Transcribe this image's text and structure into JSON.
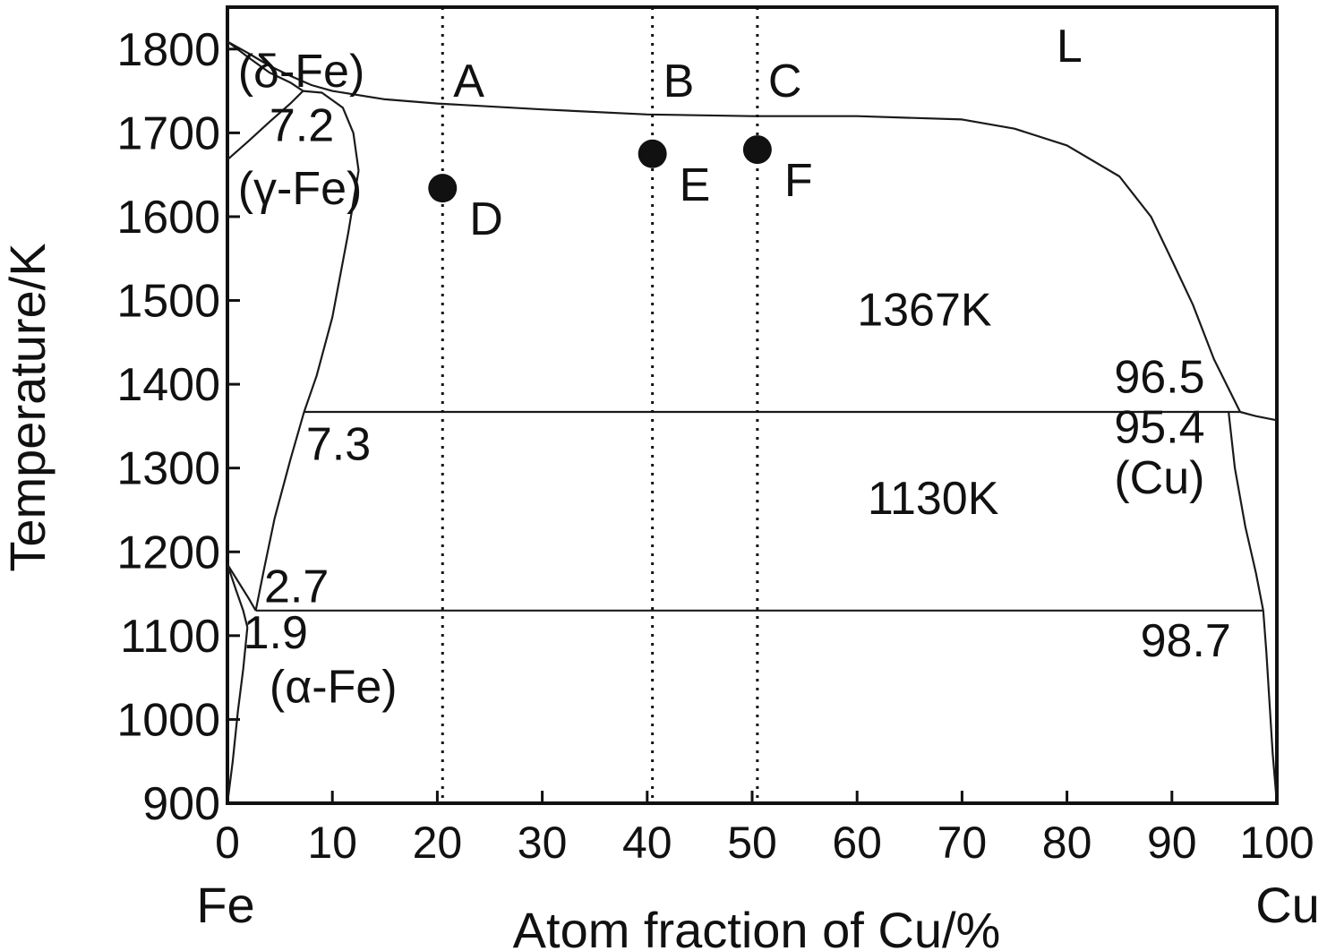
{
  "chart_data": {
    "type": "line",
    "title": "",
    "xlabel": "Atom fraction of Cu/%",
    "ylabel": "Temperature/K",
    "xlim": [
      0,
      100
    ],
    "ylim": [
      900,
      1850
    ],
    "x_ticks": [
      0,
      10,
      20,
      30,
      40,
      50,
      60,
      70,
      80,
      90,
      100
    ],
    "y_ticks": [
      900,
      1000,
      1100,
      1200,
      1300,
      1400,
      1500,
      1600,
      1700,
      1800
    ],
    "end_labels": {
      "left": "Fe",
      "right": "Cu"
    },
    "grid": false,
    "series": [
      {
        "id": "liquidus-fe",
        "x": [
          0,
          2,
          4,
          6,
          8,
          10,
          15,
          20,
          30,
          40,
          50,
          60,
          70,
          75,
          80,
          85,
          88,
          90,
          92,
          94,
          96.5
        ],
        "y": [
          1809,
          1795,
          1780,
          1768,
          1757,
          1750,
          1740,
          1735,
          1728,
          1722,
          1720,
          1720,
          1716,
          1705,
          1685,
          1648,
          1600,
          1548,
          1495,
          1430,
          1367
        ]
      },
      {
        "id": "liquidus-cu",
        "x": [
          96.5,
          98,
          100
        ],
        "y": [
          1367,
          1362,
          1357
        ]
      },
      {
        "id": "gamma-boundary-upper",
        "x": [
          0,
          2,
          4,
          6,
          7.2,
          9,
          11,
          12,
          12.5
        ],
        "y": [
          1668,
          1690,
          1713,
          1735,
          1750,
          1748,
          1730,
          1700,
          1655
        ]
      },
      {
        "id": "gamma-boundary-lower",
        "x": [
          12.5,
          11.5,
          10,
          8.5,
          7.3,
          6,
          4.5,
          3.5,
          2.7
        ],
        "y": [
          1655,
          1580,
          1480,
          1410,
          1367,
          1310,
          1240,
          1180,
          1130
        ]
      },
      {
        "id": "delta-gamma",
        "x": [
          0,
          2,
          4,
          6,
          7.2
        ],
        "y": [
          1809,
          1790,
          1772,
          1760,
          1750
        ]
      },
      {
        "id": "alpha-gamma-1",
        "x": [
          0,
          1,
          2,
          2.7
        ],
        "y": [
          1185,
          1165,
          1145,
          1130
        ]
      },
      {
        "id": "alpha-gamma-2",
        "x": [
          0,
          0.8,
          1.5,
          1.9
        ],
        "y": [
          1185,
          1155,
          1130,
          1110
        ]
      },
      {
        "id": "alpha-solvus",
        "x": [
          0,
          0.5,
          1,
          1.5,
          1.9
        ],
        "y": [
          900,
          950,
          1010,
          1060,
          1110
        ]
      },
      {
        "id": "cu-solidus",
        "x": [
          95.4,
          96,
          97,
          98,
          98.7
        ],
        "y": [
          1367,
          1300,
          1230,
          1175,
          1130
        ]
      },
      {
        "id": "cu-solvus",
        "x": [
          98.7,
          99,
          99.3,
          99.6,
          100
        ],
        "y": [
          1130,
          1080,
          1020,
          960,
          900
        ]
      },
      {
        "id": "peritectic-1367",
        "x": [
          7.3,
          96.5
        ],
        "y": [
          1367,
          1367
        ]
      },
      {
        "id": "eutectoid-1130",
        "x": [
          2.7,
          98.7
        ],
        "y": [
          1130,
          1130
        ]
      }
    ],
    "vertical_lines": [
      {
        "label": "A",
        "x": 20.5
      },
      {
        "label": "B",
        "x": 40.5
      },
      {
        "label": "C",
        "x": 50.5
      }
    ],
    "points": [
      {
        "label": "D",
        "x": 20.5,
        "y": 1634
      },
      {
        "label": "E",
        "x": 40.5,
        "y": 1675
      },
      {
        "label": "F",
        "x": 50.5,
        "y": 1680
      }
    ],
    "annotations": [
      {
        "text": "L",
        "x": 79,
        "y": 1785
      },
      {
        "text": "(δ-Fe)",
        "x": 1,
        "y": 1755
      },
      {
        "text": "7.2",
        "x": 4,
        "y": 1690
      },
      {
        "text": "(γ-Fe)",
        "x": 1,
        "y": 1615
      },
      {
        "text": "1367K",
        "x": 60,
        "y": 1470
      },
      {
        "text": "96.5",
        "x": 84.5,
        "y": 1390
      },
      {
        "text": "7.3",
        "x": 7.5,
        "y": 1310
      },
      {
        "text": "95.4",
        "x": 84.5,
        "y": 1330
      },
      {
        "text": "(Cu)",
        "x": 84.5,
        "y": 1270
      },
      {
        "text": "1130K",
        "x": 61,
        "y": 1245
      },
      {
        "text": "2.7",
        "x": 3.5,
        "y": 1140
      },
      {
        "text": "1.9",
        "x": 1.5,
        "y": 1085
      },
      {
        "text": "98.7",
        "x": 87,
        "y": 1075
      },
      {
        "text": "(α-Fe)",
        "x": 4,
        "y": 1020
      }
    ]
  }
}
